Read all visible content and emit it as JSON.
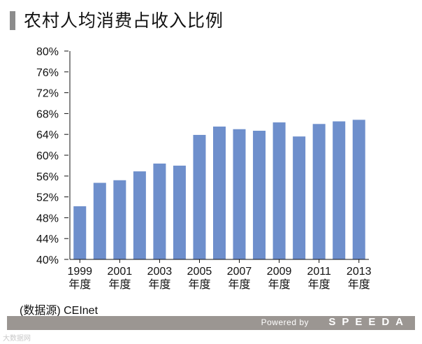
{
  "title": "农村人均消费占收入比例",
  "source": "(数据源) CEInet",
  "footer": {
    "powered": "Powered by",
    "brand": "SPEEDA"
  },
  "watermark": "大数据网",
  "colors": {
    "bar": "#6e8fcc",
    "axis": "#111111",
    "footer_bg": "#9b9692",
    "title_marker": "#8c8c8c"
  },
  "chart_data": {
    "type": "bar",
    "title": "农村人均消费占收入比例",
    "unit": "%",
    "ylim": [
      40,
      80
    ],
    "yticks": [
      40,
      44,
      48,
      52,
      56,
      60,
      64,
      68,
      72,
      76,
      80
    ],
    "ytick_labels": [
      "40%",
      "44%",
      "48%",
      "52%",
      "56%",
      "60%",
      "64%",
      "68%",
      "72%",
      "76%",
      "80%"
    ],
    "categories": [
      "1999",
      "2000",
      "2001",
      "2002",
      "2003",
      "2004",
      "2005",
      "2006",
      "2007",
      "2008",
      "2009",
      "2010",
      "2011",
      "2012",
      "2013"
    ],
    "values": [
      50.2,
      54.7,
      55.2,
      56.9,
      58.4,
      58.0,
      63.9,
      65.5,
      65.0,
      64.7,
      66.3,
      63.6,
      66.0,
      66.5,
      66.8
    ],
    "xtick_labels": [
      {
        "year": "1999",
        "suffix": "年度",
        "index": 0
      },
      {
        "year": "2001",
        "suffix": "年度",
        "index": 2
      },
      {
        "year": "2003",
        "suffix": "年度",
        "index": 4
      },
      {
        "year": "2005",
        "suffix": "年度",
        "index": 6
      },
      {
        "year": "2007",
        "suffix": "年度",
        "index": 8
      },
      {
        "year": "2009",
        "suffix": "年度",
        "index": 10
      },
      {
        "year": "2011",
        "suffix": "年度",
        "index": 12
      },
      {
        "year": "2013",
        "suffix": "年度",
        "index": 14
      }
    ],
    "grid": false,
    "legend": "none"
  }
}
